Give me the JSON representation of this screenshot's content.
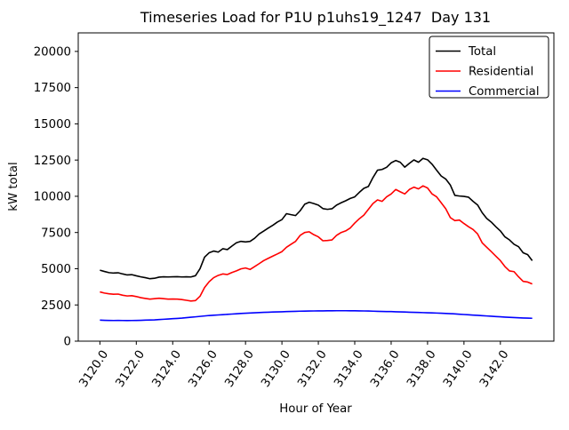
{
  "title": "Timeseries Load for P1U p1uhs19_1247  Day 131",
  "chart_data": {
    "type": "line",
    "title": "Timeseries Load for P1U p1uhs19_1247  Day 131",
    "xlabel": "Hour of Year",
    "ylabel": "kW total",
    "xlim": [
      3118.81,
      3144.94
    ],
    "ylim": [
      0,
      21280
    ],
    "grid": false,
    "legend_position": "upper-right",
    "xticks": [
      3120,
      3122,
      3124,
      3126,
      3128,
      3130,
      3132,
      3134,
      3136,
      3138,
      3140,
      3142
    ],
    "xtick_labels": [
      "3120.0",
      "3122.0",
      "3124.0",
      "3126.0",
      "3128.0",
      "3130.0",
      "3132.0",
      "3134.0",
      "3136.0",
      "3138.0",
      "3140.0",
      "3142.0"
    ],
    "yticks": [
      0,
      2500,
      5000,
      7500,
      10000,
      12500,
      15000,
      17500,
      20000
    ],
    "ytick_labels": [
      "0",
      "2500",
      "5000",
      "7500",
      "10000",
      "12500",
      "15000",
      "17500",
      "20000"
    ],
    "x_start": 3120.0,
    "x_step": 0.25,
    "series": [
      {
        "name": "Total",
        "color": "#000000",
        "values": [
          4900,
          4810,
          4730,
          4700,
          4720,
          4640,
          4570,
          4590,
          4510,
          4440,
          4380,
          4310,
          4340,
          4420,
          4440,
          4430,
          4440,
          4450,
          4430,
          4440,
          4430,
          4520,
          5000,
          5800,
          6100,
          6220,
          6150,
          6380,
          6320,
          6560,
          6790,
          6890,
          6850,
          6890,
          7100,
          7400,
          7600,
          7810,
          8000,
          8220,
          8390,
          8800,
          8730,
          8670,
          9000,
          9450,
          9590,
          9500,
          9390,
          9150,
          9100,
          9140,
          9390,
          9550,
          9690,
          9850,
          9960,
          10270,
          10550,
          10680,
          11290,
          11800,
          11850,
          12000,
          12310,
          12470,
          12350,
          12010,
          12270,
          12510,
          12350,
          12620,
          12520,
          12210,
          11800,
          11400,
          11190,
          10780,
          10060,
          10020,
          9990,
          9940,
          9650,
          9400,
          8870,
          8470,
          8220,
          7900,
          7610,
          7200,
          6990,
          6690,
          6520,
          6100,
          5970,
          5560
        ]
      },
      {
        "name": "Residential",
        "color": "#ff0000",
        "values": [
          3400,
          3320,
          3270,
          3240,
          3250,
          3170,
          3120,
          3140,
          3080,
          3000,
          2950,
          2900,
          2930,
          2960,
          2930,
          2900,
          2910,
          2900,
          2870,
          2820,
          2770,
          2800,
          3100,
          3700,
          4100,
          4380,
          4540,
          4640,
          4600,
          4740,
          4850,
          4990,
          5050,
          4950,
          5150,
          5350,
          5560,
          5720,
          5870,
          6020,
          6180,
          6480,
          6690,
          6890,
          7300,
          7500,
          7550,
          7350,
          7200,
          6930,
          6950,
          6990,
          7300,
          7500,
          7610,
          7810,
          8150,
          8450,
          8700,
          9100,
          9500,
          9750,
          9650,
          9960,
          10160,
          10470,
          10310,
          10160,
          10470,
          10630,
          10510,
          10720,
          10570,
          10160,
          9960,
          9550,
          9140,
          8530,
          8320,
          8360,
          8120,
          7900,
          7710,
          7400,
          6790,
          6480,
          6180,
          5870,
          5560,
          5150,
          4850,
          4800,
          4440,
          4130,
          4080,
          3950
        ]
      },
      {
        "name": "Commercial",
        "color": "#0000ff",
        "values": [
          1450,
          1440,
          1430,
          1425,
          1430,
          1425,
          1420,
          1425,
          1430,
          1440,
          1450,
          1460,
          1470,
          1490,
          1510,
          1530,
          1550,
          1570,
          1590,
          1620,
          1650,
          1680,
          1710,
          1740,
          1770,
          1790,
          1810,
          1830,
          1850,
          1870,
          1890,
          1910,
          1930,
          1945,
          1960,
          1975,
          1990,
          2000,
          2010,
          2020,
          2030,
          2040,
          2050,
          2060,
          2070,
          2075,
          2080,
          2085,
          2090,
          2092,
          2095,
          2097,
          2100,
          2100,
          2100,
          2098,
          2095,
          2090,
          2085,
          2080,
          2070,
          2060,
          2050,
          2045,
          2040,
          2030,
          2020,
          2010,
          2000,
          1990,
          1980,
          1970,
          1960,
          1950,
          1940,
          1930,
          1915,
          1900,
          1880,
          1860,
          1840,
          1820,
          1800,
          1780,
          1760,
          1740,
          1720,
          1700,
          1680,
          1660,
          1645,
          1630,
          1615,
          1600,
          1590,
          1580
        ]
      }
    ]
  }
}
